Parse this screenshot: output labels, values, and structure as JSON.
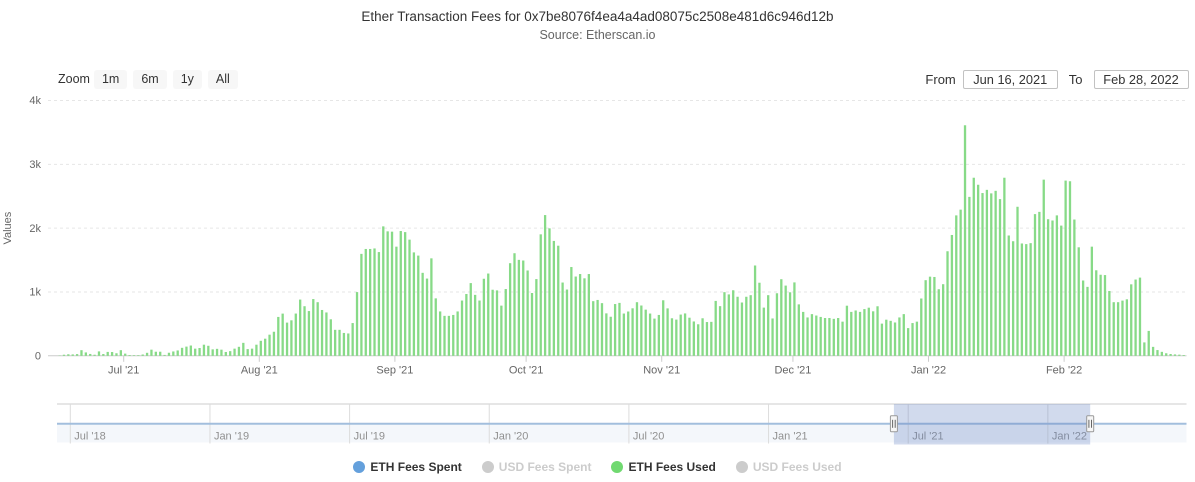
{
  "header": {
    "title": "Ether Transaction Fees for 0x7be8076f4ea4a4ad08075c2508e481d6c946d12b",
    "subtitle": "Source: Etherscan.io"
  },
  "range_selector": {
    "zoom_label": "Zoom",
    "buttons": [
      {
        "label": "1m"
      },
      {
        "label": "6m"
      },
      {
        "label": "1y"
      },
      {
        "label": "All"
      }
    ],
    "from_label": "From",
    "from_value": "Jun 16, 2021",
    "to_label": "To",
    "to_value": "Feb 28, 2022"
  },
  "legend": [
    {
      "label": "ETH Fees Spent",
      "color": "#64a0dc",
      "enabled": true
    },
    {
      "label": "USD Fees Spent",
      "color": "#cccccc",
      "enabled": false
    },
    {
      "label": "ETH Fees Used",
      "color": "#70d970",
      "enabled": true
    },
    {
      "label": "USD Fees Used",
      "color": "#cccccc",
      "enabled": false
    }
  ],
  "navigator": {
    "tick_labels": [
      "Jul '18",
      "Jan '19",
      "Jul '19",
      "Jan '20",
      "Jul '20",
      "Jan '21",
      "Jul '21",
      "Jan '22"
    ],
    "selected_range": {
      "from": "Jun 16, 2021",
      "to": "Feb 28, 2022"
    },
    "line_color": "#a2bedd",
    "mask_color": "rgba(102,133,194,0.3)"
  },
  "chart_data": {
    "type": "bar",
    "title": "Ether Transaction Fees for 0x7be8076f4ea4a4ad08075c2508e481d6c946d12b",
    "subtitle": "Source: Etherscan.io",
    "series_name": "ETH Fees Used",
    "bar_color": "#87da87",
    "ylabel": "Values",
    "ylim": [
      0,
      4000
    ],
    "ytick_labels": [
      "0",
      "1k",
      "2k",
      "3k",
      "4k"
    ],
    "yticks": [
      0,
      1000,
      2000,
      3000,
      4000
    ],
    "start_date": "2021-06-16",
    "end_date": "2022-02-28",
    "x_tick_labels": [
      "Jul '21",
      "Aug '21",
      "Sep '21",
      "Oct '21",
      "Nov '21",
      "Dec '21",
      "Jan '22",
      "Feb '22"
    ],
    "x_tick_day_index": [
      15,
      46,
      77,
      107,
      138,
      168,
      199,
      230
    ],
    "values": [
      5,
      17,
      24,
      22,
      27,
      88,
      53,
      29,
      17,
      69,
      28,
      61,
      59,
      40,
      88,
      34,
      12,
      10,
      10,
      20,
      47,
      96,
      64,
      64,
      14,
      48,
      68,
      84,
      125,
      144,
      161,
      112,
      122,
      174,
      157,
      101,
      109,
      96,
      60,
      73,
      112,
      141,
      203,
      105,
      112,
      174,
      235,
      268,
      331,
      377,
      609,
      661,
      520,
      556,
      662,
      881,
      777,
      701,
      889,
      840,
      718,
      679,
      572,
      407,
      407,
      358,
      350,
      513,
      998,
      1597,
      1674,
      1674,
      1682,
      1625,
      2028,
      1950,
      1945,
      1710,
      1955,
      1938,
      1820,
      1620,
      1570,
      1300,
      1210,
      1527,
      900,
      695,
      626,
      626,
      640,
      695,
      866,
      968,
      1139,
      955,
      866,
      1207,
      1289,
      1035,
      1025,
      786,
      1046,
      1451,
      1607,
      1503,
      1493,
      1337,
      984,
      1202,
      1903,
      2205,
      1997,
      1800,
      1725,
      1148,
      1038,
      1391,
      1242,
      1281,
      1214,
      1281,
      856,
      875,
      825,
      665,
      612,
      811,
      829,
      662,
      694,
      744,
      840,
      788,
      723,
      662,
      583,
      640,
      870,
      743,
      588,
      567,
      646,
      664,
      597,
      538,
      494,
      588,
      529,
      532,
      860,
      778,
      997,
      962,
      1027,
      925,
      835,
      925,
      950,
      1415,
      1145,
      755,
      950,
      585,
      980,
      1200,
      1100,
      995,
      1150,
      806,
      688,
      601,
      653,
      631,
      609,
      592,
      592,
      579,
      592,
      535,
      785,
      688,
      710,
      688,
      732,
      754,
      697,
      776,
      504,
      566,
      548,
      522,
      601,
      653,
      434,
      513,
      535,
      898,
      1185,
      1240,
      1235,
      1043,
      1122,
      1638,
      1893,
      2200,
      2290,
      3612,
      2490,
      2790,
      2680,
      2550,
      2600,
      2545,
      2585,
      2455,
      2790,
      1885,
      1795,
      2335,
      1760,
      1750,
      1765,
      2220,
      2255,
      2760,
      2140,
      2120,
      2200,
      2040,
      2745,
      2735,
      2135,
      1700,
      1180,
      1080,
      1710,
      1340,
      1270,
      1265,
      1015,
      840,
      840,
      865,
      885,
      1120,
      1195,
      1225,
      210,
      390,
      140,
      90,
      62,
      40,
      28,
      22,
      18,
      12
    ]
  }
}
